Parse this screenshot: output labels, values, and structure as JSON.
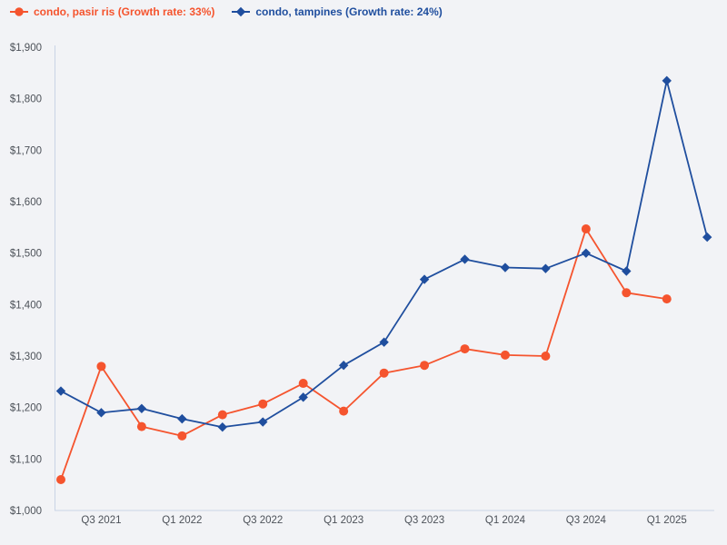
{
  "page": {
    "background": "#f2f3f6"
  },
  "legend": {
    "position": "top-left",
    "items": [
      {
        "label": "condo, pasir ris (Growth rate: 33%)",
        "color": "#f5542e",
        "marker": "circle"
      },
      {
        "label": "condo, tampines (Growth rate: 24%)",
        "color": "#1f4e9e",
        "marker": "diamond"
      }
    ]
  },
  "chart_data": {
    "type": "line",
    "title": "",
    "xlabel": "",
    "ylabel": "",
    "grid": false,
    "axis_color": "#c9d4e6",
    "tick_label_color": "#4d5259",
    "currency": "$",
    "x": [
      "Q2 2021",
      "Q3 2021",
      "Q4 2021",
      "Q1 2022",
      "Q2 2022",
      "Q3 2022",
      "Q4 2022",
      "Q1 2023",
      "Q2 2023",
      "Q3 2023",
      "Q4 2023",
      "Q1 2024",
      "Q2 2024",
      "Q3 2024",
      "Q4 2024",
      "Q1 2025",
      "Q2 2025"
    ],
    "x_tick_indices": [
      1,
      3,
      5,
      7,
      9,
      11,
      13,
      15
    ],
    "x_tick_labels": [
      "Q3 2021",
      "Q1 2022",
      "Q3 2022",
      "Q1 2023",
      "Q3 2023",
      "Q1 2024",
      "Q3 2024",
      "Q1 2025"
    ],
    "ylim": [
      1000,
      1900
    ],
    "y_ticks": [
      {
        "value": 1000,
        "label": "$1,000"
      },
      {
        "value": 1100,
        "label": "$1,100"
      },
      {
        "value": 1200,
        "label": "$1,200"
      },
      {
        "value": 1300,
        "label": "$1,300"
      },
      {
        "value": 1400,
        "label": "$1,400"
      },
      {
        "value": 1500,
        "label": "$1,500"
      },
      {
        "value": 1600,
        "label": "$1,600"
      },
      {
        "value": 1700,
        "label": "$1,700"
      },
      {
        "value": 1800,
        "label": "$1,800"
      },
      {
        "value": 1900,
        "label": "$1,900"
      }
    ],
    "series": [
      {
        "name": "condo, pasir ris",
        "growth_rate": "33%",
        "color": "#f5542e",
        "marker": "circle",
        "values": [
          1060,
          1280,
          1163,
          1145,
          1186,
          1207,
          1247,
          1193,
          1267,
          1282,
          1314,
          1302,
          1300,
          1547,
          1423,
          1411,
          null
        ]
      },
      {
        "name": "condo, tampines",
        "growth_rate": "24%",
        "color": "#1f4e9e",
        "marker": "diamond",
        "values": [
          1232,
          1190,
          1198,
          1178,
          1162,
          1172,
          1220,
          1282,
          1327,
          1449,
          1488,
          1472,
          1470,
          1500,
          1465,
          1835,
          1531
        ]
      }
    ]
  }
}
